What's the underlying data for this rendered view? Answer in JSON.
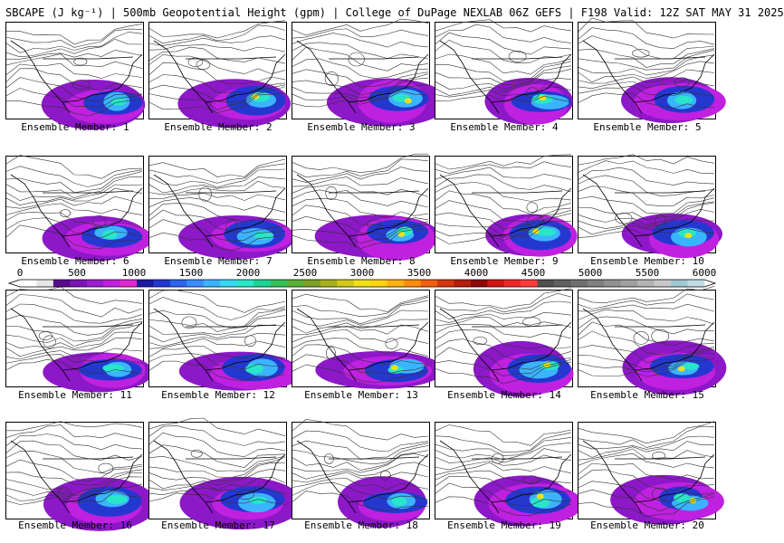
{
  "header": {
    "title": "SBCAPE (J kg⁻¹) | 500mb Geopotential Height (gpm) | College of DuPage NEXLAB 06Z GEFS | F198 Valid: 12Z SAT MAY 31 2025"
  },
  "colorbar": {
    "ticks": [
      "0",
      "500",
      "1000",
      "1500",
      "2000",
      "2500",
      "3000",
      "3500",
      "4000",
      "4500",
      "5000",
      "5500",
      "6000"
    ],
    "range": [
      0,
      6000
    ],
    "colors": [
      "#ffffff",
      "#e6e6e6",
      "#5a0a8c",
      "#7a14b4",
      "#9a1ecf",
      "#c020e0",
      "#e02ad0",
      "#1a1aa0",
      "#2438d0",
      "#2e64ee",
      "#3a8cff",
      "#3ab4ff",
      "#3ad8f0",
      "#28e6c8",
      "#1ed294",
      "#36c05a",
      "#5ab03a",
      "#7aa028",
      "#a6b01e",
      "#d2c81a",
      "#f0e01a",
      "#ffd214",
      "#ffb012",
      "#ff8c10",
      "#f0600e",
      "#d2380c",
      "#b41e0a",
      "#8c0a0a",
      "#d21414",
      "#f02828",
      "#ff3c3c",
      "#505050",
      "#606060",
      "#707070",
      "#808080",
      "#909090",
      "#a0a0a0",
      "#b4b4b4",
      "#c8c8c8",
      "#a0c8d2",
      "#c0dce6"
    ]
  },
  "members": [
    {
      "label": "Ensemble Member: 1"
    },
    {
      "label": "Ensemble Member: 2"
    },
    {
      "label": "Ensemble Member: 3"
    },
    {
      "label": "Ensemble Member: 4"
    },
    {
      "label": "Ensemble Member: 5"
    },
    {
      "label": "Ensemble Member: 6"
    },
    {
      "label": "Ensemble Member: 7"
    },
    {
      "label": "Ensemble Member: 8"
    },
    {
      "label": "Ensemble Member: 9"
    },
    {
      "label": "Ensemble Member: 10"
    },
    {
      "label": "Ensemble Member: 11"
    },
    {
      "label": "Ensemble Member: 12"
    },
    {
      "label": "Ensemble Member: 13"
    },
    {
      "label": "Ensemble Member: 14"
    },
    {
      "label": "Ensemble Member: 15"
    },
    {
      "label": "Ensemble Member: 16"
    },
    {
      "label": "Ensemble Member: 17"
    },
    {
      "label": "Ensemble Member: 18"
    },
    {
      "label": "Ensemble Member: 19"
    },
    {
      "label": "Ensemble Member: 20"
    }
  ]
}
